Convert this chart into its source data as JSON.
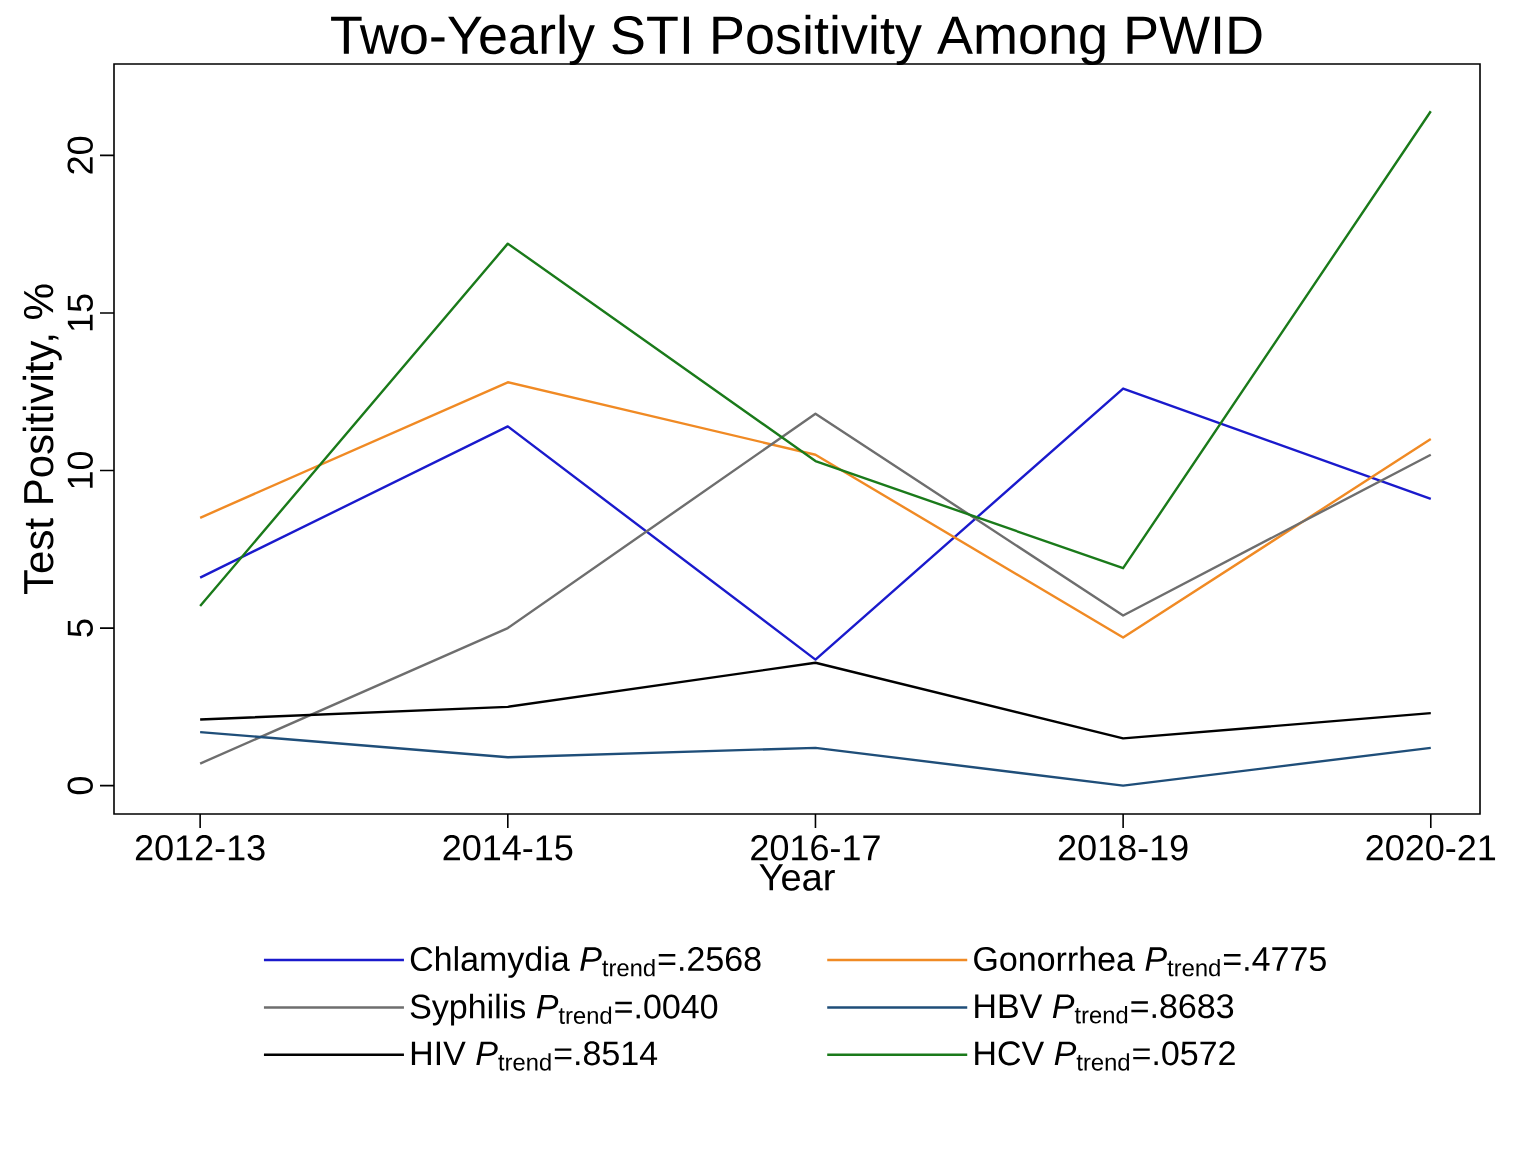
{
  "chart_data": {
    "type": "line",
    "title": "Two-Yearly STI Positivity Among PWID",
    "xlabel": "Year",
    "ylabel": "Test Positivity, %",
    "categories": [
      "2012-13",
      "2014-15",
      "2016-17",
      "2018-19",
      "2020-21"
    ],
    "series": [
      {
        "name": "Chlamydia *P*$_{trend}$=.2568",
        "color": "#1a1acc",
        "values": [
          6.6,
          11.4,
          4.0,
          12.6,
          9.1
        ]
      },
      {
        "name": "Gonorrhea *P*$_{trend}$=.4775",
        "color": "#f08a24",
        "values": [
          8.5,
          12.8,
          10.5,
          4.7,
          11.0
        ]
      },
      {
        "name": "Syphilis *P*$_{trend}$=.0040",
        "color": "#6e6e6e",
        "values": [
          0.7,
          5.0,
          11.8,
          5.4,
          10.5
        ]
      },
      {
        "name": "HBV *P*$_{trend}$=.8683",
        "color": "#1f4e79",
        "values": [
          1.7,
          0.9,
          1.2,
          0.0,
          1.2
        ]
      },
      {
        "name": "HIV *P*$_{trend}$=.8514",
        "color": "#000000",
        "values": [
          2.1,
          2.5,
          3.9,
          1.5,
          2.3
        ]
      },
      {
        "name": "HCV *P*$_{trend}$=.0572",
        "color": "#1a7a1a",
        "values": [
          5.7,
          17.2,
          10.3,
          6.9,
          21.4
        ]
      }
    ],
    "ylim": [
      -0.9,
      22.9
    ],
    "yticks": [
      0,
      5,
      10,
      15,
      20
    ],
    "legend": "bottom"
  }
}
